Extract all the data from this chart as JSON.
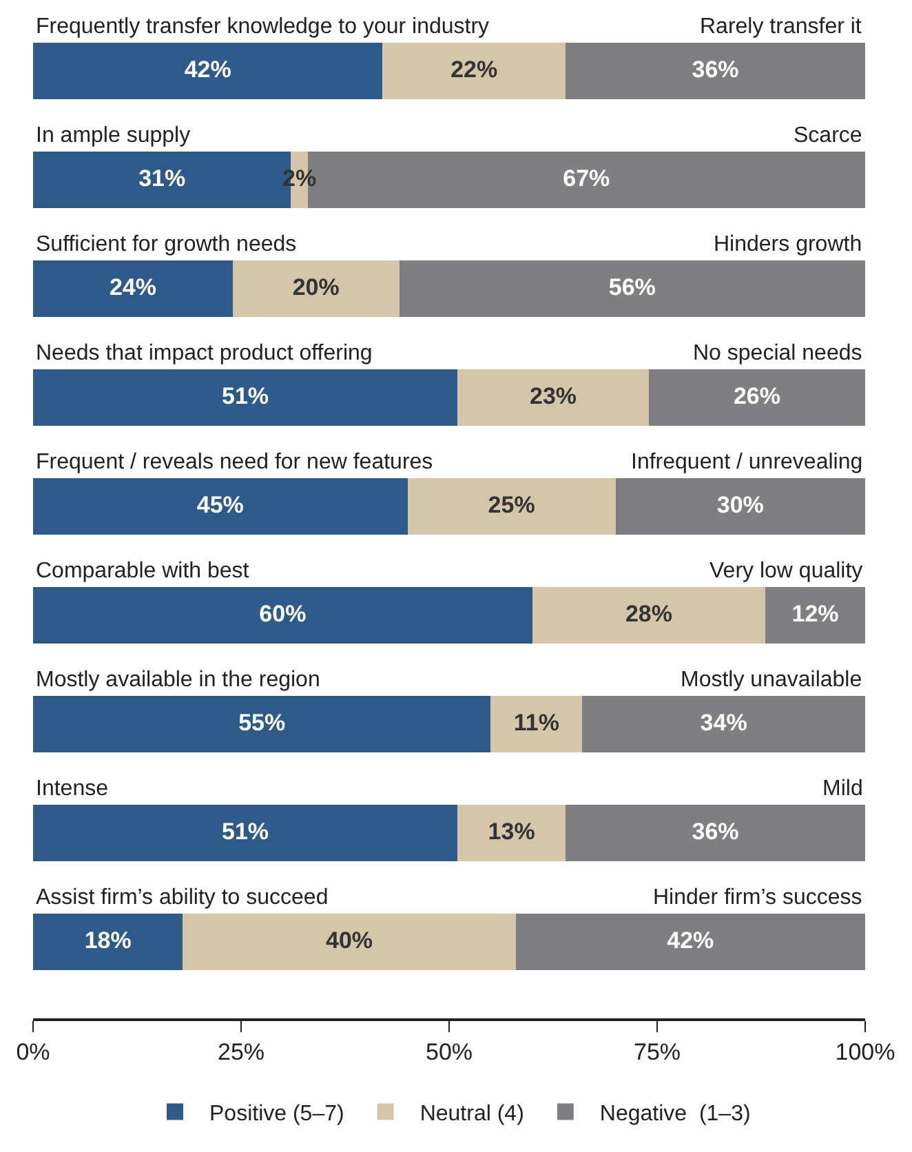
{
  "chart_data": {
    "type": "bar",
    "orientation": "horizontal",
    "stacked": true,
    "categories": [
      "Frequently transfer knowledge to your industry",
      "In ample supply",
      "Sufficient for growth needs",
      "Needs that impact product offering",
      "Frequent / reveals need for new features",
      "Comparable with best",
      "Mostly available in the region",
      "Intense",
      "Assist firm’s ability to succeed"
    ],
    "y2_categories": [
      "Rarely transfer it",
      "Scarce",
      "Hinders growth",
      "No special needs",
      "Infrequent / unrevealing",
      "Very low quality",
      "Mostly unavailable",
      "Mild",
      "Hinder firm’s success"
    ],
    "series": [
      {
        "name": "Positive (5–7)",
        "color": "#2e5a8a",
        "values": [
          42,
          31,
          24,
          51,
          45,
          60,
          55,
          51,
          18
        ],
        "value_labels": [
          "42%",
          "31%",
          "24%",
          "51%",
          "45%",
          "60%",
          "55%",
          "51%",
          "18%"
        ]
      },
      {
        "name": "Neutral (4)",
        "color": "#d5c6aa",
        "values": [
          22,
          2,
          20,
          23,
          25,
          28,
          11,
          13,
          40
        ],
        "value_labels": [
          "22%",
          "2%",
          "20%",
          "23%",
          "25%",
          "28%",
          "11%",
          "13%",
          "40%"
        ]
      },
      {
        "name": "Negative  (1–3)",
        "color": "#7f7f81",
        "values": [
          36,
          67,
          56,
          26,
          30,
          12,
          34,
          36,
          42
        ],
        "value_labels": [
          "36%",
          "67%",
          "56%",
          "26%",
          "30%",
          "12%",
          "34%",
          "36%",
          "42%"
        ]
      }
    ],
    "xlim": [
      0,
      100
    ],
    "xticks": [
      {
        "value": 0,
        "label": "0%"
      },
      {
        "value": 25,
        "label": "25%"
      },
      {
        "value": 50,
        "label": "50%"
      },
      {
        "value": 75,
        "label": "75%"
      },
      {
        "value": 100,
        "label": "100%"
      }
    ],
    "legend": "bottom",
    "tick_labels": "x"
  }
}
